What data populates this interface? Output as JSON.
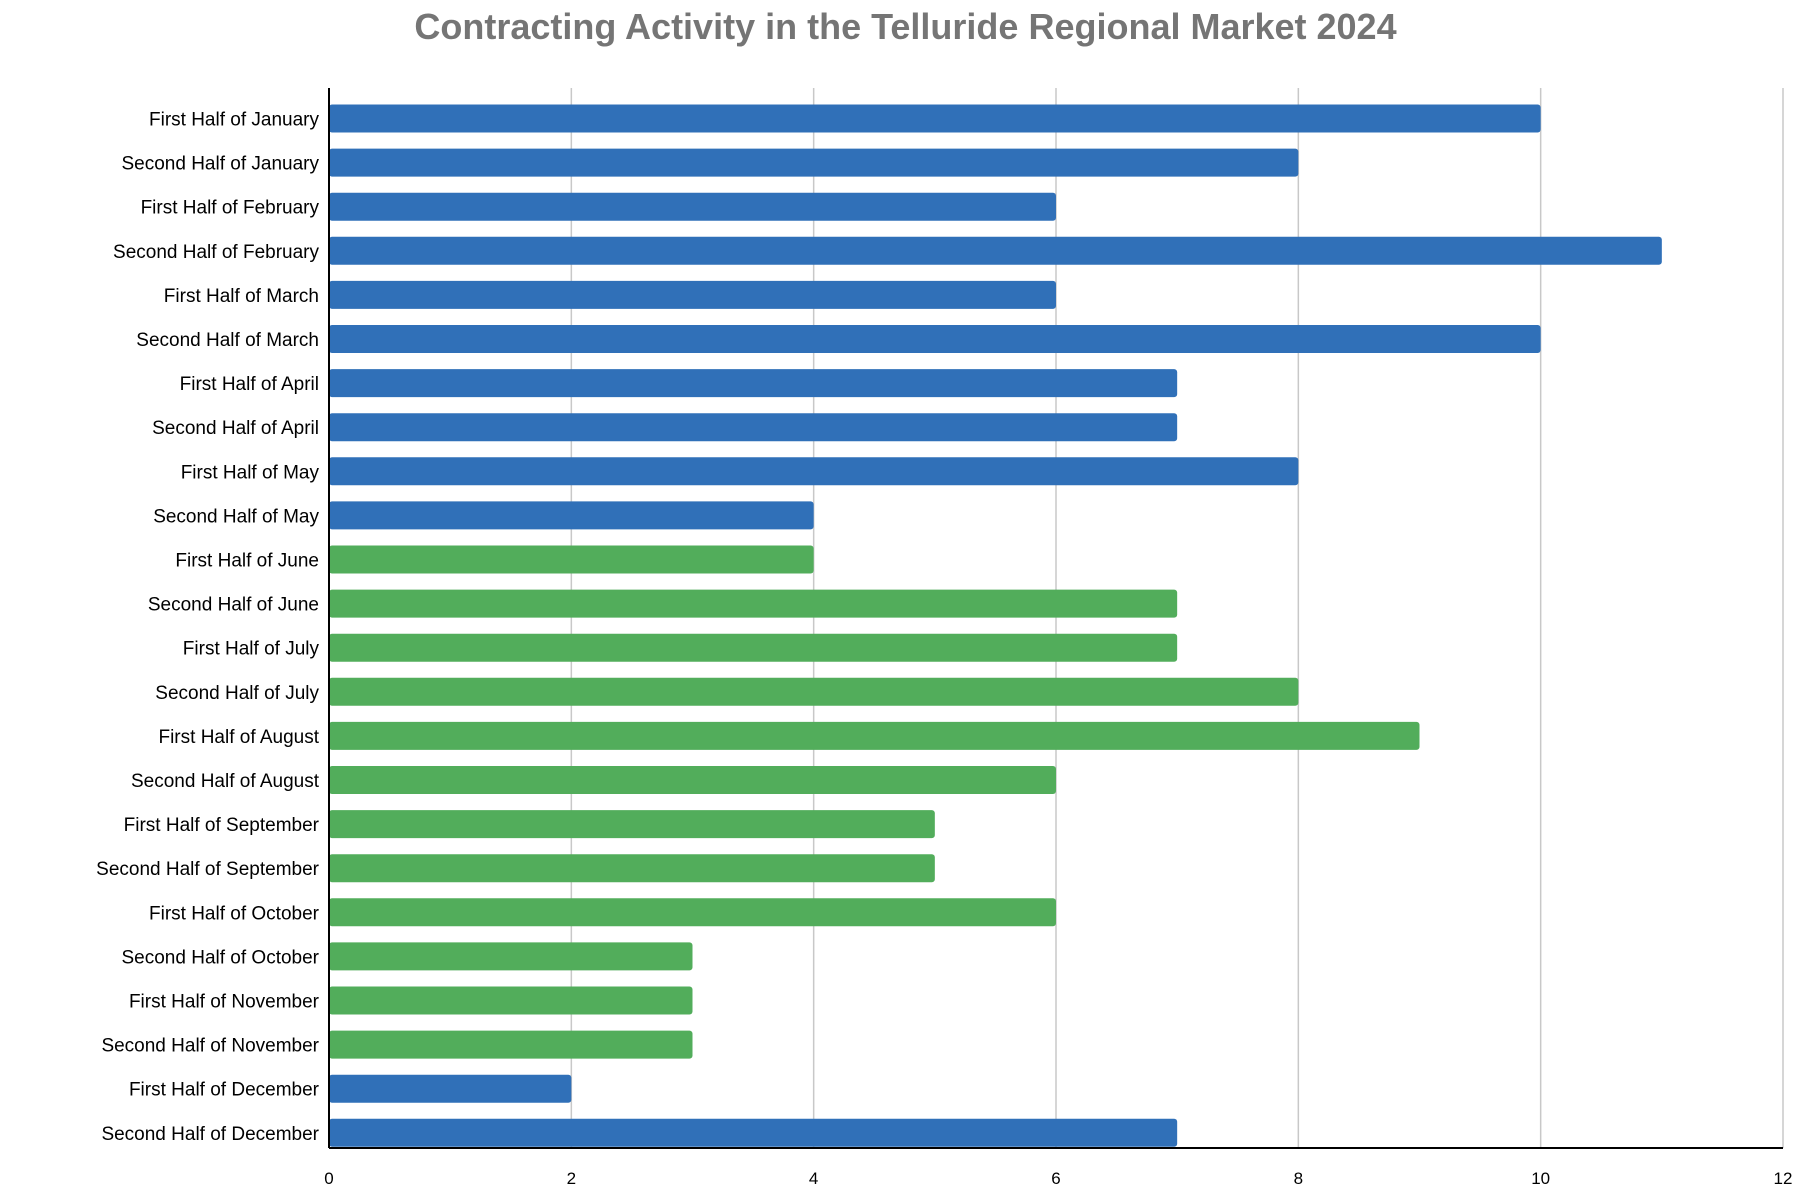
{
  "chart_data": {
    "type": "bar",
    "orientation": "horizontal",
    "title": "Contracting Activity in the Telluride Regional Market 2024",
    "xlabel": "",
    "ylabel": "",
    "xlim": [
      0,
      12
    ],
    "x_ticks": [
      0,
      2,
      4,
      6,
      8,
      10,
      12
    ],
    "grid": true,
    "legend": "none",
    "colors": {
      "blue": "#3070B8",
      "green": "#52AD5B",
      "grid": "#C8C8C8",
      "axis": "#000000",
      "title": "#757575"
    },
    "categories": [
      "First Half of January",
      "Second Half of January",
      "First Half of February",
      "Second Half of February",
      "First Half of March",
      "Second Half of March",
      "First Half of April",
      "Second Half of April",
      "First Half of May",
      "Second Half of May",
      "First Half of June",
      "Second Half of June",
      "First Half of July",
      "Second Half of July",
      "First Half of August",
      "Second Half of August",
      "First Half of September",
      "Second Half of September",
      "First Half of October",
      "Second Half of October",
      "First Half of November",
      "Second Half of November",
      "First Half of December",
      "Second Half of December"
    ],
    "values": [
      10,
      8,
      6,
      11,
      6,
      10,
      7,
      7,
      8,
      4,
      4,
      7,
      7,
      8,
      9,
      6,
      5,
      5,
      6,
      3,
      3,
      3,
      2,
      7
    ],
    "bar_colors": [
      "blue",
      "blue",
      "blue",
      "blue",
      "blue",
      "blue",
      "blue",
      "blue",
      "blue",
      "blue",
      "green",
      "green",
      "green",
      "green",
      "green",
      "green",
      "green",
      "green",
      "green",
      "green",
      "green",
      "green",
      "blue",
      "blue"
    ]
  }
}
